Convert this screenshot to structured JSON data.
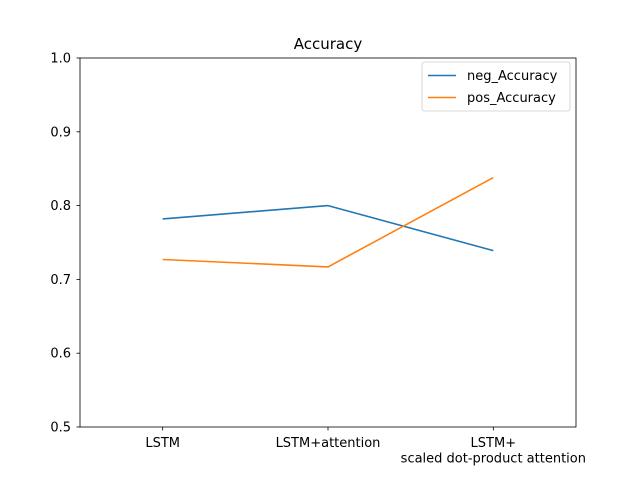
{
  "chart_data": {
    "type": "line",
    "title": "Accuracy",
    "xlabel": "",
    "ylabel": "",
    "categories": [
      [
        "LSTM"
      ],
      [
        "LSTM+attention"
      ],
      [
        "LSTM+",
        "scaled dot-product attention"
      ]
    ],
    "ylim": [
      0.5,
      1.0
    ],
    "yticks": [
      "0.5",
      "0.6",
      "0.7",
      "0.8",
      "0.9",
      "1.0"
    ],
    "grid": false,
    "legend_position": "top-right",
    "series": [
      {
        "name": "neg_Accuracy",
        "color": "#1f77b4",
        "values": [
          0.782,
          0.8,
          0.739
        ]
      },
      {
        "name": "pos_Accuracy",
        "color": "#ff7f0e",
        "values": [
          0.727,
          0.717,
          0.838
        ]
      }
    ]
  }
}
